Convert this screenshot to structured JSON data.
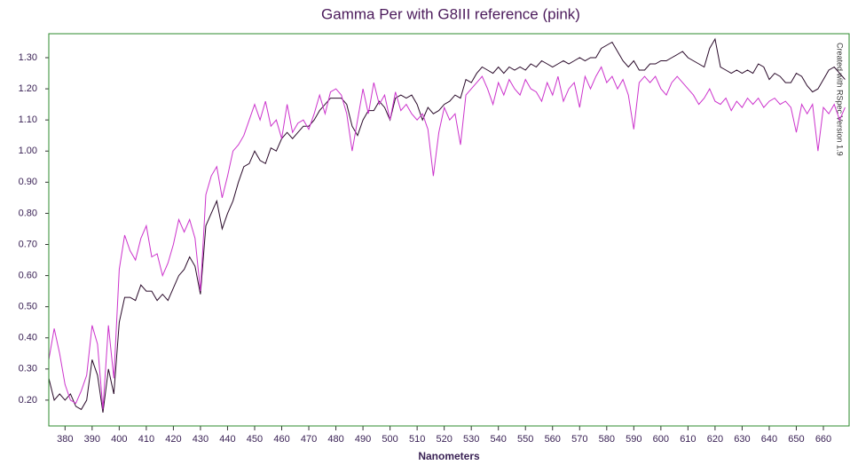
{
  "chart_data": {
    "type": "line",
    "title": "Gamma Per with G8III reference (pink)",
    "x_label": "Nanometers",
    "annotation": "Created with RSpec Version 1.9",
    "x": [
      374,
      376,
      378,
      380,
      382,
      384,
      386,
      388,
      390,
      392,
      394,
      396,
      398,
      400,
      402,
      404,
      406,
      408,
      410,
      412,
      414,
      416,
      418,
      420,
      422,
      424,
      426,
      428,
      430,
      432,
      434,
      436,
      438,
      440,
      442,
      444,
      446,
      448,
      450,
      452,
      454,
      456,
      458,
      460,
      462,
      464,
      466,
      468,
      470,
      472,
      474,
      476,
      478,
      480,
      482,
      484,
      486,
      488,
      490,
      492,
      494,
      496,
      498,
      500,
      502,
      504,
      506,
      508,
      510,
      512,
      514,
      516,
      518,
      520,
      522,
      524,
      526,
      528,
      530,
      532,
      534,
      536,
      538,
      540,
      542,
      544,
      546,
      548,
      550,
      552,
      554,
      556,
      558,
      560,
      562,
      564,
      566,
      568,
      570,
      572,
      574,
      576,
      578,
      580,
      582,
      584,
      586,
      588,
      590,
      592,
      594,
      596,
      598,
      600,
      602,
      604,
      606,
      608,
      610,
      612,
      614,
      616,
      618,
      620,
      622,
      624,
      626,
      628,
      630,
      632,
      634,
      636,
      638,
      640,
      642,
      644,
      646,
      648,
      650,
      652,
      654,
      656,
      658,
      660,
      662,
      664,
      666,
      668
    ],
    "series": [
      {
        "color": "#2a0a2a",
        "values": [
          0.27,
          0.2,
          0.22,
          0.2,
          0.22,
          0.18,
          0.17,
          0.2,
          0.33,
          0.28,
          0.16,
          0.3,
          0.22,
          0.45,
          0.53,
          0.53,
          0.52,
          0.57,
          0.55,
          0.55,
          0.52,
          0.54,
          0.52,
          0.56,
          0.6,
          0.62,
          0.66,
          0.63,
          0.54,
          0.76,
          0.8,
          0.84,
          0.75,
          0.8,
          0.84,
          0.9,
          0.95,
          0.96,
          1.0,
          0.97,
          0.96,
          1.01,
          1.0,
          1.04,
          1.06,
          1.04,
          1.06,
          1.08,
          1.08,
          1.1,
          1.13,
          1.15,
          1.17,
          1.17,
          1.17,
          1.15,
          1.08,
          1.05,
          1.1,
          1.13,
          1.13,
          1.16,
          1.14,
          1.1,
          1.17,
          1.18,
          1.17,
          1.18,
          1.15,
          1.1,
          1.14,
          1.12,
          1.13,
          1.15,
          1.16,
          1.18,
          1.17,
          1.23,
          1.22,
          1.25,
          1.27,
          1.26,
          1.25,
          1.27,
          1.25,
          1.27,
          1.26,
          1.27,
          1.26,
          1.28,
          1.27,
          1.29,
          1.28,
          1.27,
          1.28,
          1.29,
          1.28,
          1.29,
          1.3,
          1.29,
          1.3,
          1.3,
          1.33,
          1.34,
          1.35,
          1.32,
          1.29,
          1.27,
          1.29,
          1.26,
          1.26,
          1.28,
          1.28,
          1.29,
          1.29,
          1.3,
          1.31,
          1.32,
          1.3,
          1.29,
          1.28,
          1.27,
          1.33,
          1.36,
          1.27,
          1.26,
          1.25,
          1.26,
          1.25,
          1.26,
          1.25,
          1.28,
          1.27,
          1.23,
          1.25,
          1.24,
          1.22,
          1.22,
          1.25,
          1.24,
          1.21,
          1.19,
          1.2,
          1.23,
          1.26,
          1.27,
          1.25,
          1.23
        ]
      },
      {
        "color": "#cc33cc",
        "values": [
          0.33,
          0.43,
          0.35,
          0.25,
          0.2,
          0.19,
          0.23,
          0.28,
          0.44,
          0.38,
          0.17,
          0.44,
          0.27,
          0.62,
          0.73,
          0.68,
          0.65,
          0.72,
          0.76,
          0.66,
          0.67,
          0.6,
          0.64,
          0.7,
          0.78,
          0.74,
          0.78,
          0.72,
          0.55,
          0.86,
          0.92,
          0.95,
          0.85,
          0.92,
          1.0,
          1.02,
          1.05,
          1.1,
          1.15,
          1.1,
          1.16,
          1.08,
          1.1,
          1.04,
          1.15,
          1.06,
          1.09,
          1.1,
          1.07,
          1.12,
          1.18,
          1.12,
          1.19,
          1.2,
          1.18,
          1.12,
          1.0,
          1.1,
          1.2,
          1.12,
          1.22,
          1.15,
          1.18,
          1.1,
          1.19,
          1.13,
          1.15,
          1.12,
          1.1,
          1.12,
          1.07,
          0.92,
          1.06,
          1.14,
          1.1,
          1.12,
          1.02,
          1.18,
          1.2,
          1.22,
          1.24,
          1.2,
          1.15,
          1.22,
          1.18,
          1.23,
          1.2,
          1.18,
          1.23,
          1.2,
          1.19,
          1.16,
          1.22,
          1.18,
          1.24,
          1.16,
          1.2,
          1.22,
          1.14,
          1.24,
          1.2,
          1.24,
          1.27,
          1.22,
          1.24,
          1.2,
          1.23,
          1.18,
          1.07,
          1.22,
          1.24,
          1.22,
          1.24,
          1.2,
          1.18,
          1.22,
          1.24,
          1.22,
          1.2,
          1.18,
          1.15,
          1.17,
          1.2,
          1.16,
          1.15,
          1.17,
          1.13,
          1.16,
          1.14,
          1.17,
          1.15,
          1.17,
          1.14,
          1.16,
          1.17,
          1.15,
          1.16,
          1.14,
          1.06,
          1.15,
          1.12,
          1.15,
          1.0,
          1.14,
          1.12,
          1.15,
          1.1,
          1.14
        ]
      }
    ],
    "xlim": [
      374,
      669.5
    ],
    "ylim": [
      0.117,
      1.377
    ],
    "xticks": [
      380,
      390,
      400,
      410,
      420,
      430,
      440,
      450,
      460,
      470,
      480,
      490,
      500,
      510,
      520,
      530,
      540,
      550,
      560,
      570,
      580,
      590,
      600,
      610,
      620,
      630,
      640,
      650,
      660
    ],
    "yticks": [
      {
        "value": 0.2,
        "label": "0.20"
      },
      {
        "value": 0.3,
        "label": "0.30"
      },
      {
        "value": 0.4,
        "label": "0.40"
      },
      {
        "value": 0.5,
        "label": "0.50"
      },
      {
        "value": 0.6,
        "label": "0.60"
      },
      {
        "value": 0.7,
        "label": "0.70"
      },
      {
        "value": 0.8,
        "label": "0.80"
      },
      {
        "value": 0.9,
        "label": "0.90"
      },
      {
        "value": 1.0,
        "label": "1.00"
      },
      {
        "value": 1.1,
        "label": "1.10"
      },
      {
        "value": 1.2,
        "label": "1.20"
      },
      {
        "value": 1.3,
        "label": "1.30"
      }
    ]
  }
}
